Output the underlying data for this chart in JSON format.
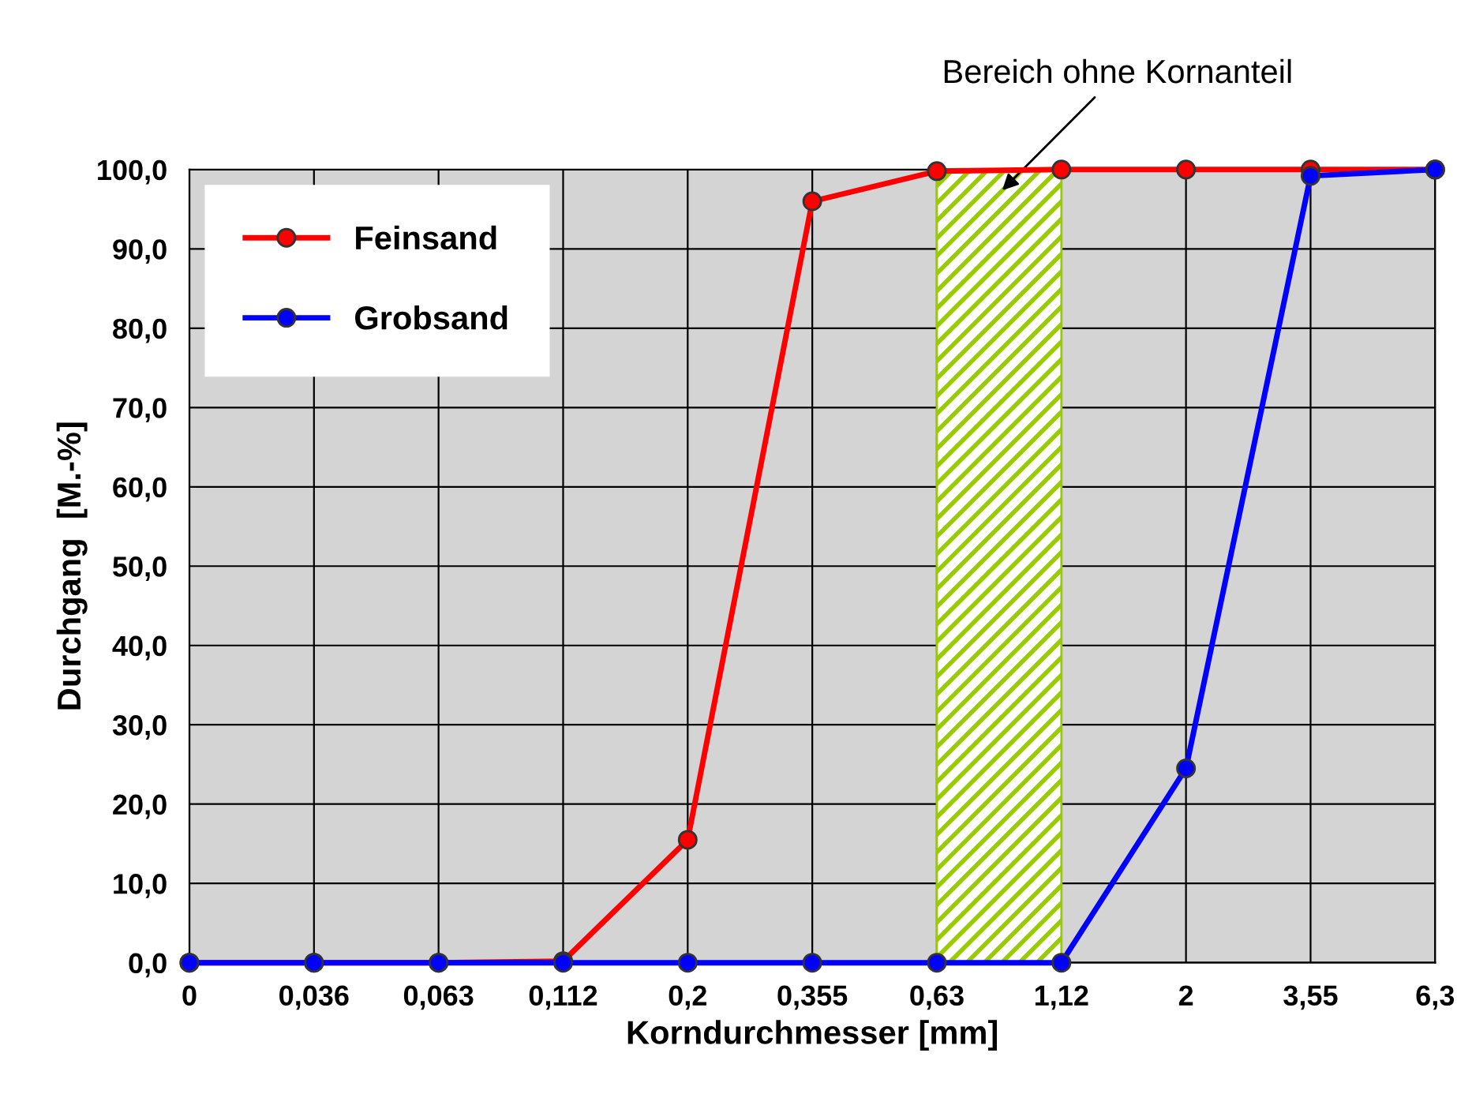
{
  "chart_data": {
    "type": "line",
    "categories": [
      "0",
      "0,036",
      "0,063",
      "0,112",
      "0,2",
      "0,355",
      "0,63",
      "1,12",
      "2",
      "3,55",
      "6,3"
    ],
    "series": [
      {
        "name": "Feinsand",
        "color": "#ff0000",
        "values": [
          0,
          0,
          0,
          0.2,
          15.5,
          96,
          99.8,
          100,
          100,
          100,
          100
        ]
      },
      {
        "name": "Grobsand",
        "color": "#0000ff",
        "values": [
          0,
          0,
          0,
          0,
          0,
          0,
          0,
          0,
          24.5,
          99.2,
          100
        ]
      }
    ],
    "xlabel": "Korndurchmesser [mm]",
    "ylabel": "Durchgang  [M.-%]",
    "ylim": [
      0,
      100
    ],
    "yticks": [
      {
        "value": 0,
        "label": "0,0"
      },
      {
        "value": 10,
        "label": "10,0"
      },
      {
        "value": 20,
        "label": "20,0"
      },
      {
        "value": 30,
        "label": "30,0"
      },
      {
        "value": 40,
        "label": "40,0"
      },
      {
        "value": 50,
        "label": "50,0"
      },
      {
        "value": 60,
        "label": "60,0"
      },
      {
        "value": 70,
        "label": "70,0"
      },
      {
        "value": 80,
        "label": "80,0"
      },
      {
        "value": 90,
        "label": "90,0"
      },
      {
        "value": 100,
        "label": "100,0"
      }
    ],
    "bands": [
      {
        "axis": "x",
        "from": "0,63",
        "to": "1,12",
        "label": "Bereich ohne Kornanteil",
        "color": "#99cc00"
      }
    ],
    "grid": true,
    "legend": "top left",
    "marker": "circle",
    "line_style": "solid"
  }
}
